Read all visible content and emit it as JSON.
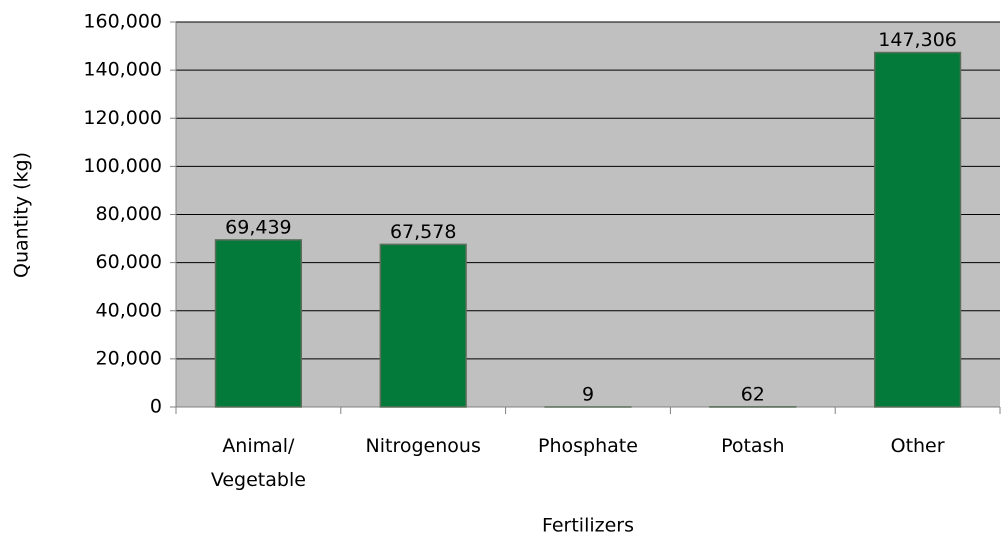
{
  "chart_data": {
    "type": "bar",
    "x_label": "Fertilizers",
    "y_label": "Quantity (kg)",
    "categories": [
      "Animal/ Vegetable",
      "Nitrogenous",
      "Phosphate",
      "Potash",
      "Other"
    ],
    "values": [
      69439,
      67578,
      9,
      62,
      147306
    ],
    "value_labels": [
      "69,439",
      "67,578",
      "9",
      "62",
      "147,306"
    ],
    "color": "#047a3a",
    "ylim": [
      0,
      160000
    ],
    "yticks": [
      0,
      {
        "value": 20000,
        "label": "20,000"
      },
      {
        "value": 40000,
        "label": "40,000"
      },
      {
        "value": 60000,
        "label": "60,000"
      },
      {
        "value": 80000,
        "label": "80,000"
      },
      {
        "value": 100000,
        "label": "100,000"
      },
      {
        "value": 120000,
        "label": "120,000"
      },
      {
        "value": 140000,
        "label": "140,000"
      },
      {
        "value": 160000,
        "label": "160,000"
      }
    ],
    "grid": true
  }
}
